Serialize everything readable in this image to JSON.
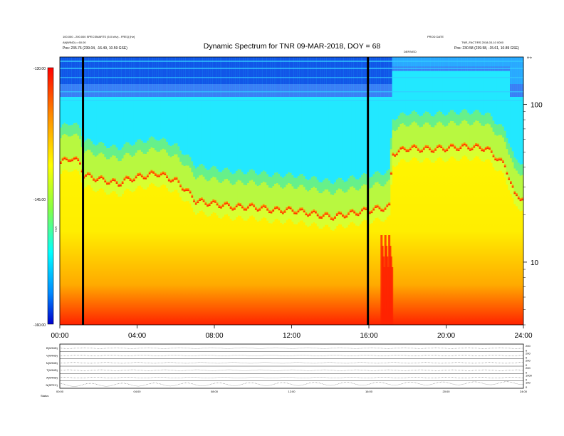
{
  "chart_data": {
    "type": "heatmap",
    "title": "Dynamic Spectrum for TNR 09-MAR-2018, DOY = 68",
    "header_left": [
      "100.000 - 200.000 SPECSMARTS (5.0 kHz) - FREQ [Hz]",
      "Alt(WIND) = 60.00",
      "Pos: 235.76 (239.04, -16.49, 10.59 GSE)"
    ],
    "header_right": [
      "PROD DATE",
      "TNR_FACT/RS 2018-03-10 0000",
      "Pos: 230.58 (239.58, -15.61, 10.89 GSE)"
    ],
    "header_center_small": "DERIVED",
    "corner_label": "kHz",
    "colorbar": {
      "label": "TNR",
      "ticks": [
        "-130.00",
        "-145.00",
        "-160.00"
      ],
      "colors": [
        "#ff0000",
        "#ff8800",
        "#ffff00",
        "#88ff44",
        "#00ffff",
        "#0088ff",
        "#0000cc"
      ]
    },
    "x_axis": {
      "range_hours": [
        0,
        24
      ],
      "ticks": [
        "00:00",
        "04:00",
        "08:00",
        "12:00",
        "16:00",
        "20:00",
        "24:00"
      ]
    },
    "y_axis_right": {
      "scale": "log",
      "range_khz": [
        4,
        200
      ],
      "ticks": [
        "100",
        "10"
      ]
    },
    "vertical_markers_hours": [
      1.2,
      15.95
    ],
    "ridge_profile": {
      "x_hours": [
        0,
        0.5,
        1,
        1.2,
        2,
        3,
        3.5,
        4,
        5,
        6,
        7,
        8,
        9,
        10,
        11,
        12,
        13,
        14,
        15,
        16,
        17,
        17.2,
        18,
        19,
        20,
        21,
        22,
        23,
        23.5,
        24
      ],
      "freq_khz": [
        42,
        45,
        42,
        35,
        33,
        31,
        33,
        34,
        36,
        32,
        24,
        23,
        22,
        22,
        21,
        21,
        20,
        19,
        20,
        21,
        22,
        48,
        52,
        51,
        52,
        53,
        52,
        40,
        26,
        25
      ]
    },
    "panels": [
      {
        "label": "B(WIND)",
        "values": [
          "200",
          "0"
        ]
      },
      {
        "label": "V(WIND)",
        "values": [
          "200",
          "0"
        ]
      },
      {
        "label": "N(WIND)",
        "values": [
          "200",
          "0"
        ]
      },
      {
        "label": "T(WIND)",
        "values": [
          "200",
          "0"
        ]
      },
      {
        "label": "A(WIND)",
        "values": [
          "1000",
          "0"
        ]
      },
      {
        "label": "N(SPEC)",
        "values": [
          "100",
          "0"
        ]
      }
    ],
    "bottom_axis_ticks": [
      "00:00",
      "04:00",
      "08:00",
      "12:00",
      "16:00",
      "20:00",
      "24:00"
    ],
    "bottom_left_label": "Status"
  }
}
